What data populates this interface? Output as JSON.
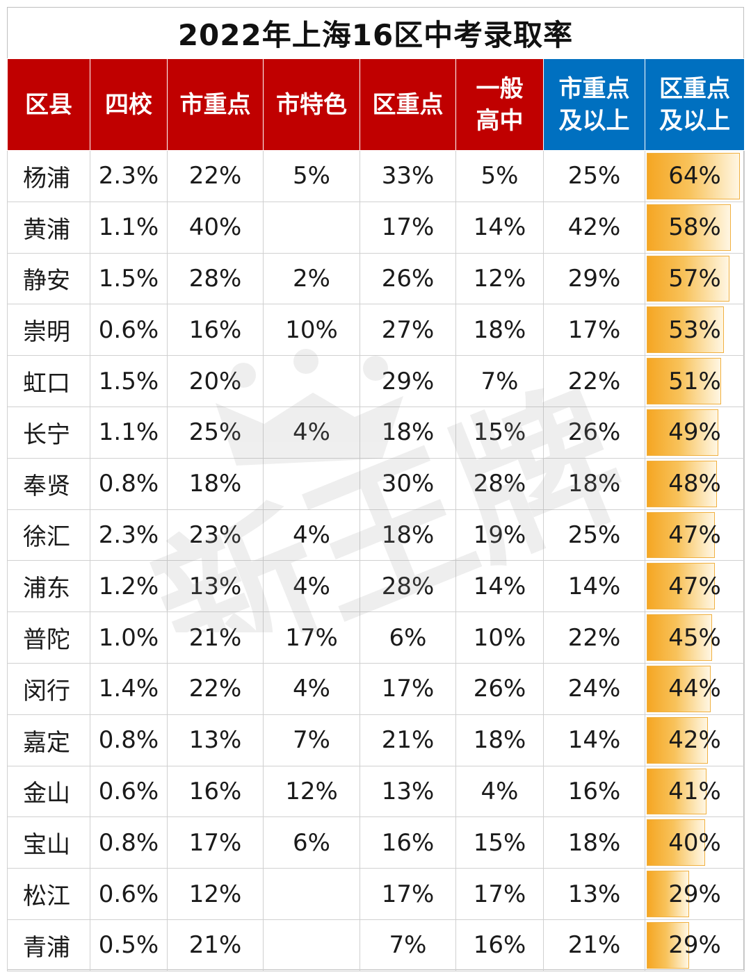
{
  "title": "2022年上海16区中考录取率",
  "watermark": "新王牌",
  "colors": {
    "header_red": "#c00000",
    "header_blue": "#0070c0",
    "bar": "#f5a623"
  },
  "headers": [
    {
      "lines": [
        "区县"
      ],
      "color": "red"
    },
    {
      "lines": [
        "四校"
      ],
      "color": "red"
    },
    {
      "lines": [
        "市重点"
      ],
      "color": "red"
    },
    {
      "lines": [
        "市特色"
      ],
      "color": "red"
    },
    {
      "lines": [
        "区重点"
      ],
      "color": "red"
    },
    {
      "lines": [
        "一般",
        "高中"
      ],
      "color": "red"
    },
    {
      "lines": [
        "市重点",
        "及以上"
      ],
      "color": "blue"
    },
    {
      "lines": [
        "区重点",
        "及以上"
      ],
      "color": "blue"
    }
  ],
  "rows": [
    {
      "district": "杨浦",
      "values": [
        "2.3%",
        "22%",
        "5%",
        "33%",
        "5%",
        "25%",
        "64%"
      ],
      "bar": 64
    },
    {
      "district": "黄浦",
      "values": [
        "1.1%",
        "40%",
        "",
        "17%",
        "14%",
        "42%",
        "58%"
      ],
      "bar": 58
    },
    {
      "district": "静安",
      "values": [
        "1.5%",
        "28%",
        "2%",
        "26%",
        "12%",
        "29%",
        "57%"
      ],
      "bar": 57
    },
    {
      "district": "崇明",
      "values": [
        "0.6%",
        "16%",
        "10%",
        "27%",
        "18%",
        "17%",
        "53%"
      ],
      "bar": 53
    },
    {
      "district": "虹口",
      "values": [
        "1.5%",
        "20%",
        "",
        "29%",
        "7%",
        "22%",
        "51%"
      ],
      "bar": 51
    },
    {
      "district": "长宁",
      "values": [
        "1.1%",
        "25%",
        "4%",
        "18%",
        "15%",
        "26%",
        "49%"
      ],
      "bar": 49
    },
    {
      "district": "奉贤",
      "values": [
        "0.8%",
        "18%",
        "",
        "30%",
        "28%",
        "18%",
        "48%"
      ],
      "bar": 48
    },
    {
      "district": "徐汇",
      "values": [
        "2.3%",
        "23%",
        "4%",
        "18%",
        "19%",
        "25%",
        "47%"
      ],
      "bar": 47
    },
    {
      "district": "浦东",
      "values": [
        "1.2%",
        "13%",
        "4%",
        "28%",
        "14%",
        "14%",
        "47%"
      ],
      "bar": 47
    },
    {
      "district": "普陀",
      "values": [
        "1.0%",
        "21%",
        "17%",
        "6%",
        "10%",
        "22%",
        "45%"
      ],
      "bar": 45
    },
    {
      "district": "闵行",
      "values": [
        "1.4%",
        "22%",
        "4%",
        "17%",
        "26%",
        "24%",
        "44%"
      ],
      "bar": 44
    },
    {
      "district": "嘉定",
      "values": [
        "0.8%",
        "13%",
        "7%",
        "21%",
        "18%",
        "14%",
        "42%"
      ],
      "bar": 42
    },
    {
      "district": "金山",
      "values": [
        "0.6%",
        "16%",
        "12%",
        "13%",
        "4%",
        "16%",
        "41%"
      ],
      "bar": 41
    },
    {
      "district": "宝山",
      "values": [
        "0.8%",
        "17%",
        "6%",
        "16%",
        "15%",
        "18%",
        "40%"
      ],
      "bar": 40
    },
    {
      "district": "松江",
      "values": [
        "0.6%",
        "12%",
        "",
        "17%",
        "17%",
        "13%",
        "29%"
      ],
      "bar": 29
    },
    {
      "district": "青浦",
      "values": [
        "0.5%",
        "21%",
        "",
        "7%",
        "16%",
        "21%",
        "29%"
      ],
      "bar": 29
    }
  ]
}
